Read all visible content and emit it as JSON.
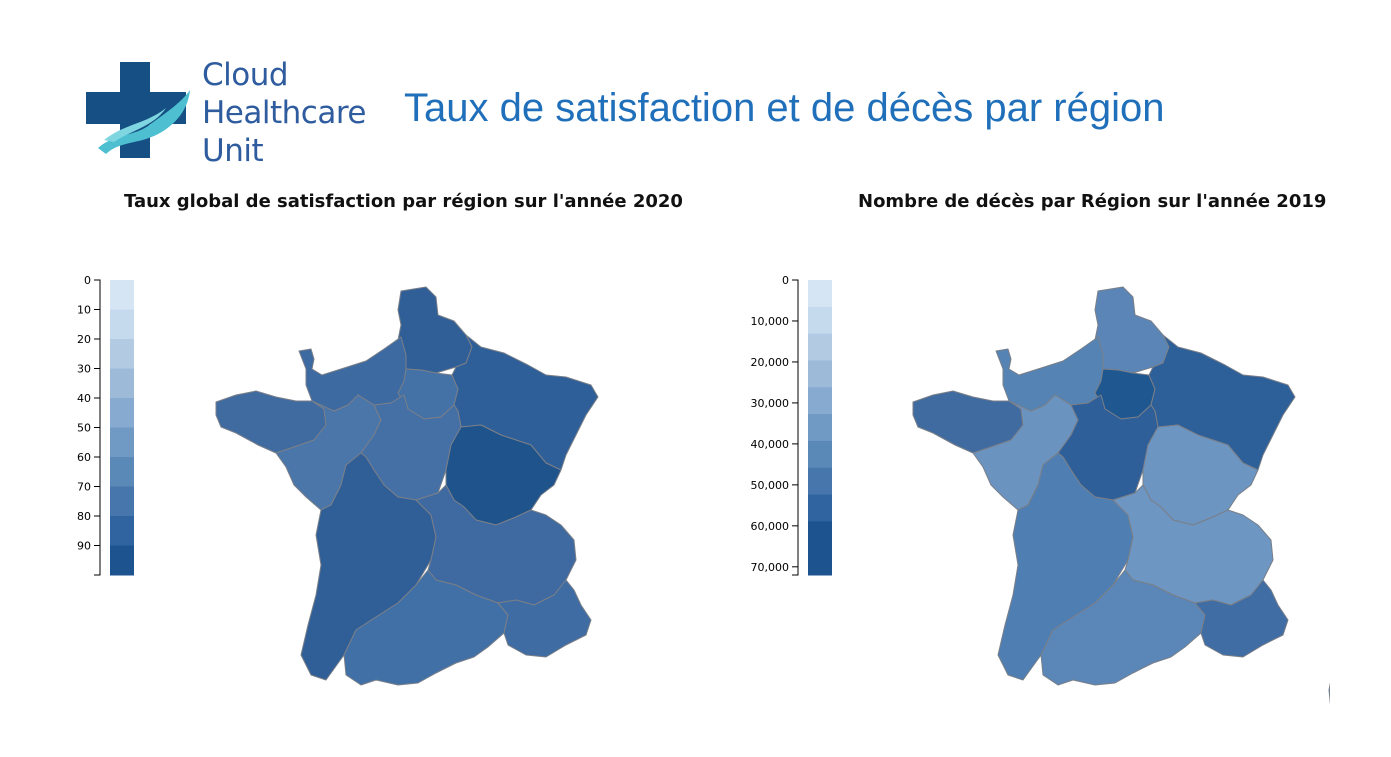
{
  "logo": {
    "line1": "Cloud",
    "line2": "Healthcare",
    "line3": "Unit",
    "colors": {
      "cross": "#154f83",
      "hand": "#4dbfd0",
      "text": "#2e5c9e"
    }
  },
  "title": "Taux de satisfaction et de décès par région",
  "maps": [
    {
      "subtitle": "Taux global de satisfaction par région sur l'année 2020",
      "legend_ticks": [
        "0",
        "10",
        "20",
        "30",
        "40",
        "50",
        "60",
        "70",
        "80",
        "90"
      ],
      "legend_range": [
        0,
        100
      ],
      "legend_colors": [
        "#d6e5f4",
        "#c6daee",
        "#b2cbe3",
        "#9dbbd9",
        "#86aad0",
        "#7099c4",
        "#5a89b8",
        "#4676ac",
        "#2f64a0",
        "#1d5490"
      ],
      "region_colors": {
        "hauts-de-france": "#305f98",
        "normandie": "#3d6aa1",
        "ile-de-france": "#4471a6",
        "grand-est": "#2f5f98",
        "bretagne": "#3f6ba1",
        "pays-de-la-loire": "#4a76a9",
        "centre-val-de-loire": "#4470a6",
        "bourgogne-franche-comte": "#1e538b",
        "nouvelle-aquitaine": "#305f98",
        "auvergne-rhone-alpes": "#3e6aa1",
        "occitanie": "#4170a6",
        "paca": "#3e6ca3",
        "corse": "#1f568f"
      }
    },
    {
      "subtitle": "Nombre de décès par Région sur l'année 2019",
      "legend_ticks": [
        "0",
        "10,000",
        "20,000",
        "30,000",
        "40,000",
        "50,000",
        "60,000",
        "70,000"
      ],
      "legend_range": [
        0,
        72000
      ],
      "legend_colors": [
        "#d6e5f4",
        "#c6daee",
        "#b2cbe3",
        "#9dbbd9",
        "#86aad0",
        "#7099c4",
        "#5a89b8",
        "#4676ac",
        "#2f64a0",
        "#1d5490",
        "#1d5490"
      ],
      "region_colors": {
        "hauts-de-france": "#5a85b6",
        "normandie": "#5583b4",
        "ile-de-france": "#1f5790",
        "grand-est": "#2d5f98",
        "bretagne": "#3f6ba1",
        "pays-de-la-loire": "#6a93c0",
        "centre-val-de-loire": "#2f5f98",
        "bourgogne-franche-comte": "#6c95c2",
        "nouvelle-aquitaine": "#4f7fb2",
        "auvergne-rhone-alpes": "#6d96c3",
        "occitanie": "#5a86b8",
        "paca": "#3f6da4",
        "corse": "#5e89b9"
      }
    }
  ]
}
